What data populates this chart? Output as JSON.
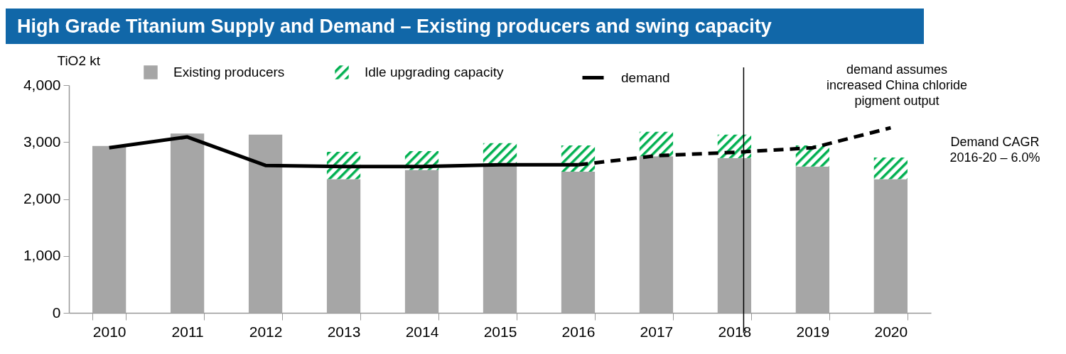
{
  "chart_data": {
    "type": "bar",
    "title": "High Grade Titanium Supply and Demand – Existing producers and swing capacity",
    "ylabel": "TiO2 kt",
    "categories": [
      "2010",
      "2011",
      "2012",
      "2013",
      "2014",
      "2015",
      "2016",
      "2017",
      "2018",
      "2019",
      "2020"
    ],
    "stacked": true,
    "series": [
      {
        "name": "Existing producers",
        "color": "#a6a6a6",
        "values": [
          2930,
          3150,
          3130,
          2350,
          2510,
          2580,
          2480,
          2750,
          2720,
          2570,
          2350
        ]
      },
      {
        "name": "Idle upgrading capacity",
        "color": "#00b050",
        "values": [
          null,
          null,
          null,
          480,
          330,
          400,
          460,
          430,
          410,
          370,
          380
        ]
      },
      {
        "name": "demand",
        "type": "line",
        "color": "#000000",
        "line_style": "solid",
        "values": [
          2900,
          3090,
          2590,
          2570,
          2570,
          2600,
          2600,
          null,
          null,
          null,
          null
        ]
      },
      {
        "type": "line",
        "color": "#000000",
        "line_style": "dashed",
        "values": [
          null,
          null,
          null,
          null,
          null,
          null,
          2600,
          2760,
          2820,
          2900,
          3250
        ]
      }
    ],
    "ylim": [
      0,
      4000
    ],
    "yticks": [
      {
        "value": 0,
        "label": "0"
      },
      {
        "value": 1000,
        "label": "1,000"
      },
      {
        "value": 2000,
        "label": "2,000"
      },
      {
        "value": 3000,
        "label": "3,000"
      },
      {
        "value": 4000,
        "label": "4,000"
      }
    ],
    "ref_lines": [
      {
        "axis": "x",
        "value": "2018",
        "color": "#000000"
      }
    ],
    "legend": "top",
    "grid": false,
    "annotations": [
      "demand assumes\nincreased China chloride\npigment output",
      "Demand CAGR\n2016-20 – 6.0%"
    ]
  }
}
